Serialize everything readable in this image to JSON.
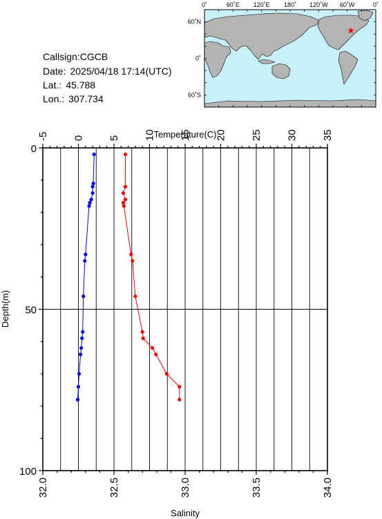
{
  "station": {
    "callsign_label": "Callsign:",
    "callsign": "CGCB",
    "date_label": "Date:",
    "date": "2025/04/18 17:14(UTC)",
    "lat_label": "Lat.:",
    "lat": "45.788",
    "lon_label": "Lon.:",
    "lon": "307.734"
  },
  "map": {
    "lon_labels": [
      "0˚",
      "60˚E",
      "120˚E",
      "180˚",
      "120˚W",
      "60˚W",
      "0˚"
    ],
    "lat_labels": [
      "60˚N",
      "0˚",
      "60˚S"
    ],
    "ocean_color": "#c8f0fb",
    "land_color": "#b4b4b4",
    "marker_icon": "star",
    "marker_color": "#ff0000",
    "marker_lat": 45.788,
    "marker_lon": 307.734
  },
  "chart_data": {
    "type": "line",
    "title": "",
    "ylabel": "Depth(m)",
    "ylim": [
      0,
      100
    ],
    "y_inverted": true,
    "y_ticks": [
      0,
      50,
      100
    ],
    "grid": true,
    "x_top": {
      "label": "Temperature(C)",
      "lim": [
        -5,
        35
      ],
      "ticks": [
        -5,
        0,
        5,
        10,
        15,
        20,
        25,
        30,
        35
      ]
    },
    "x_bottom": {
      "label": "Salinity",
      "lim": [
        32.0,
        34.0
      ],
      "ticks": [
        "32.0",
        "32.5",
        "33.0",
        "33.5",
        "34.0"
      ]
    },
    "series": [
      {
        "axis": "top",
        "color": "#0000ff",
        "points": [
          {
            "x": 2.2,
            "y": 2
          },
          {
            "x": 2.1,
            "y": 11
          },
          {
            "x": 2.0,
            "y": 12
          },
          {
            "x": 2.0,
            "y": 14
          },
          {
            "x": 1.8,
            "y": 16
          },
          {
            "x": 1.6,
            "y": 17
          },
          {
            "x": 1.5,
            "y": 18
          },
          {
            "x": 1.0,
            "y": 33
          },
          {
            "x": 0.9,
            "y": 35
          },
          {
            "x": 0.7,
            "y": 46
          },
          {
            "x": 0.6,
            "y": 57
          },
          {
            "x": 0.5,
            "y": 59
          },
          {
            "x": 0.4,
            "y": 62
          },
          {
            "x": 0.3,
            "y": 64
          },
          {
            "x": 0.1,
            "y": 70
          },
          {
            "x": 0.0,
            "y": 74
          },
          {
            "x": -0.1,
            "y": 78
          }
        ]
      },
      {
        "axis": "top",
        "color": "#ff0000",
        "points": [
          {
            "x": 6.6,
            "y": 2
          },
          {
            "x": 6.6,
            "y": 12
          },
          {
            "x": 6.3,
            "y": 14
          },
          {
            "x": 6.6,
            "y": 16
          },
          {
            "x": 6.3,
            "y": 17
          },
          {
            "x": 6.4,
            "y": 18
          },
          {
            "x": 7.4,
            "y": 33
          },
          {
            "x": 7.6,
            "y": 35
          },
          {
            "x": 8.0,
            "y": 46
          },
          {
            "x": 9.0,
            "y": 57
          },
          {
            "x": 9.1,
            "y": 59
          },
          {
            "x": 10.4,
            "y": 62
          },
          {
            "x": 10.9,
            "y": 64
          },
          {
            "x": 12.4,
            "y": 70
          },
          {
            "x": 14.2,
            "y": 74
          },
          {
            "x": 14.2,
            "y": 78
          }
        ]
      }
    ]
  }
}
